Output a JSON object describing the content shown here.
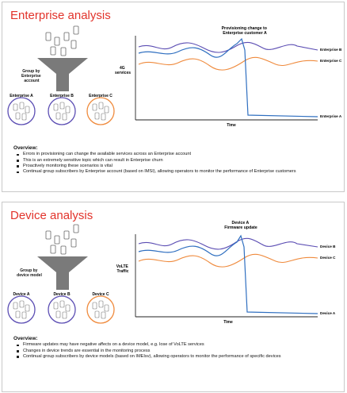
{
  "slides": [
    {
      "title": "Enterprise analysis",
      "funnel_label": [
        "Group by",
        "Enterprise",
        "account"
      ],
      "groups": [
        "Enterprise A",
        "Enterprise B",
        "Enterprise C"
      ],
      "group_colors": [
        "#5b4db3",
        "#5b4db3",
        "#ef8a3c"
      ],
      "chart": {
        "annotation": [
          "Provisioning change to",
          "Enterprise customer A"
        ],
        "ylabel": [
          "4G",
          "services"
        ],
        "xlabel": "Time",
        "series_labels": [
          "Enterprise B",
          "Enterprise C",
          "Enterprise A"
        ]
      },
      "overview_title": "Overview:",
      "bullets": [
        "Errors in provisioning can change the available services across an Enterprise account",
        "This is an extremely sensitive topic which can result in Enterprise churn",
        "Proactively monitoring these scenarios is vital",
        "Continual group subscribers by Enterprise account (based on IMSI), allowing operators to monitor the performance of Enterprise customers"
      ]
    },
    {
      "title": "Device analysis",
      "funnel_label": [
        "Group by",
        "device model"
      ],
      "groups": [
        "Device A",
        "Device B",
        "Device C"
      ],
      "group_colors": [
        "#5b4db3",
        "#5b4db3",
        "#ef8a3c"
      ],
      "chart": {
        "annotation": [
          "Device A",
          "Firmware update"
        ],
        "ylabel": [
          "VoLTE",
          "Traffic"
        ],
        "xlabel": "Time",
        "series_labels": [
          "Device B",
          "Device C",
          "Device A"
        ]
      },
      "overview_title": "Overview:",
      "bullets": [
        "Firmware updates may have negative affects on a device model, e.g. lose of VoLTE services",
        "Changes in device trends are essential in the monitoring process",
        "Continual group subscribers by device models (based on IMEIsv), allowing operators to monitor the performance of specific devices"
      ]
    }
  ],
  "colors": {
    "title": "#e2332b",
    "purple": "#5b4db3",
    "orange": "#ef8a3c",
    "blue": "#2f6fc0",
    "funnel": "#7a7a7a"
  }
}
